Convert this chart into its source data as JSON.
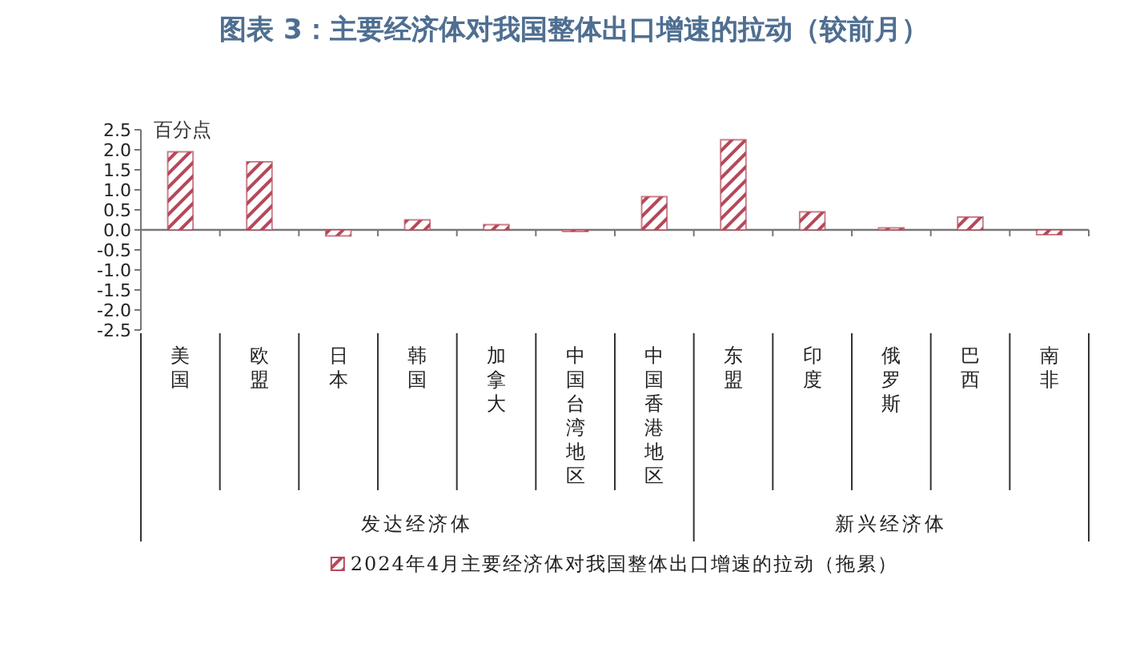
{
  "chart_data": {
    "type": "bar",
    "title": "图表 3：主要经济体对我国整体出口增速的拉动（较前月）",
    "ylabel": "百分点",
    "categories": [
      "美国",
      "欧盟",
      "日本",
      "韩国",
      "加拿大",
      "中国台湾地区",
      "中国香港地区",
      "东盟",
      "印度",
      "俄罗斯",
      "巴西",
      "南非"
    ],
    "series": [
      {
        "name": "2024年4月主要经济体对我国整体出口增速的拉动（拖累）",
        "color": "#b5485a",
        "values": [
          1.95,
          1.7,
          -0.15,
          0.25,
          0.13,
          -0.03,
          0.83,
          2.25,
          0.45,
          0.05,
          0.32,
          -0.12
        ]
      }
    ],
    "ylim": [
      -2.5,
      2.5
    ],
    "yticks": [
      2.5,
      {
        "value": 2,
        "label": "2.0"
      },
      1.5,
      {
        "value": 1,
        "label": "1.0"
      },
      0.5,
      {
        "value": 0,
        "label": "0.0"
      },
      -0.5,
      {
        "value": -1,
        "label": "-1.0"
      },
      -1.5,
      {
        "value": -2,
        "label": "-2.0"
      },
      -2.5
    ],
    "annotations": [
      "发达经济体",
      "新兴经济体"
    ],
    "legend": "bottom"
  }
}
